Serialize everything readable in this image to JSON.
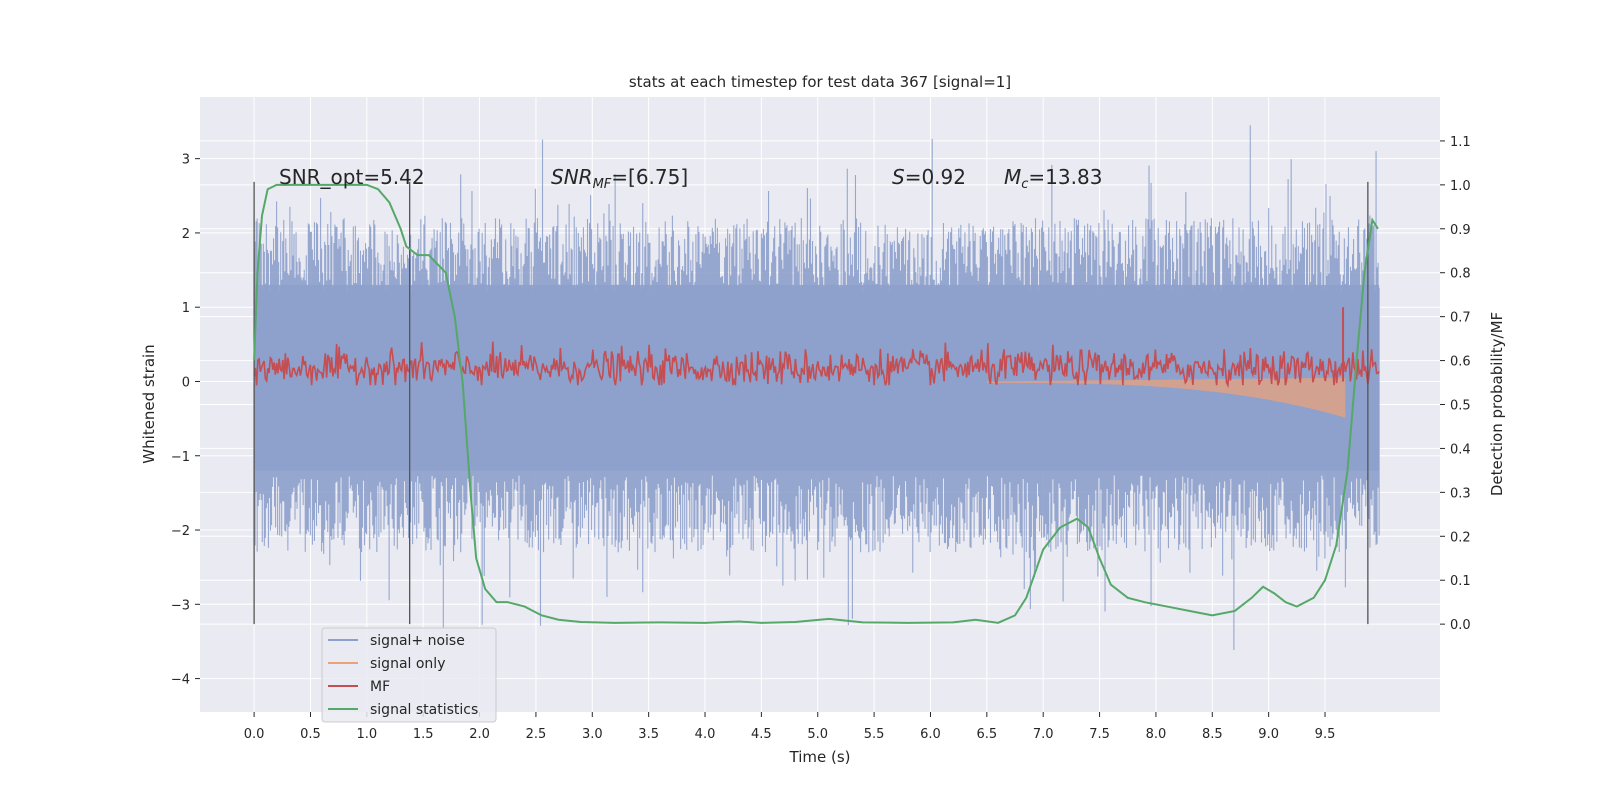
{
  "chart_data": {
    "type": "line",
    "title": "stats at each timestep for test data 367 [signal=1]",
    "xlabel": "Time (s)",
    "ylabel": "Whitened strain",
    "y2label": "Detection probability/MF",
    "xlim": [
      -0.48,
      10.52
    ],
    "ylim": [
      -4.45,
      3.83
    ],
    "y2lim": [
      -0.2,
      1.2
    ],
    "xticks": [
      0.0,
      0.5,
      1.0,
      1.5,
      2.0,
      2.5,
      3.0,
      3.5,
      4.0,
      4.5,
      5.0,
      5.5,
      6.0,
      6.5,
      7.0,
      7.5,
      8.0,
      8.5,
      9.0,
      9.5
    ],
    "xtick_labels": [
      "0.0",
      "0.5",
      "1.0",
      "1.5",
      "2.0",
      "2.5",
      "3.0",
      "3.5",
      "4.0",
      "4.5",
      "5.0",
      "5.5",
      "6.0",
      "6.5",
      "7.0",
      "7.5",
      "8.0",
      "8.5",
      "9.0",
      "9.5"
    ],
    "yticks": [
      3,
      2,
      1,
      0,
      -1,
      -2,
      -3,
      -4
    ],
    "ytick_labels": [
      "3",
      "2",
      "1",
      "0",
      "−1",
      "−2",
      "−3",
      "−4"
    ],
    "y2ticks": [
      1.1,
      1.0,
      0.9,
      0.8,
      0.7,
      0.6,
      0.5,
      0.4,
      0.3,
      0.2,
      0.1,
      0.0
    ],
    "y2tick_labels": [
      "1.1",
      "1.0",
      "0.9",
      "0.8",
      "0.7",
      "0.6",
      "0.5",
      "0.4",
      "0.3",
      "0.2",
      "0.1",
      "0.0"
    ],
    "grid": true,
    "legend_position": "lower-left",
    "annotations": {
      "snr_opt": "SNR_opt=5.42",
      "snr_mf_base": "SNR",
      "snr_mf_sub": "MF",
      "snr_mf_rest": "=[6.75]",
      "s_base": "S",
      "s_rest": "=0.92",
      "mc_base": "M",
      "mc_sub": "c",
      "mc_rest": "=13.83"
    },
    "vlines": [
      0.0,
      1.38,
      9.88
    ],
    "series": [
      {
        "name": "signal+ noise",
        "color": "#8da0cb",
        "envelope_hi": 2.2,
        "envelope_lo": -2.3,
        "t_end": 9.98
      },
      {
        "name": "signal only",
        "color": "#e9a27c",
        "t_start": 6.5,
        "t_end": 9.68,
        "peak": -0.8
      },
      {
        "name": "MF",
        "color": "#c44e52",
        "baseline": 0.18,
        "spike_t": 9.66,
        "spike_y": 1.0
      },
      {
        "name": "signal statistics",
        "color": "#55a868",
        "x": [
          0.0,
          0.03,
          0.07,
          0.12,
          0.2,
          0.3,
          0.5,
          0.8,
          1.0,
          1.1,
          1.2,
          1.3,
          1.35,
          1.45,
          1.55,
          1.7,
          1.78,
          1.85,
          1.92,
          1.97,
          2.05,
          2.15,
          2.25,
          2.4,
          2.55,
          2.7,
          2.9,
          3.2,
          3.6,
          4.0,
          4.3,
          4.5,
          4.8,
          5.1,
          5.4,
          5.8,
          6.2,
          6.4,
          6.6,
          6.75,
          6.85,
          7.0,
          7.15,
          7.3,
          7.4,
          7.5,
          7.6,
          7.75,
          7.9,
          8.1,
          8.3,
          8.5,
          8.7,
          8.85,
          8.95,
          9.05,
          9.15,
          9.25,
          9.4,
          9.5,
          9.6,
          9.7,
          9.78,
          9.85,
          9.92,
          9.97
        ],
        "y": [
          0.6,
          0.8,
          0.93,
          0.99,
          1.0,
          1.0,
          1.0,
          1.0,
          1.0,
          0.99,
          0.96,
          0.9,
          0.86,
          0.84,
          0.84,
          0.8,
          0.7,
          0.55,
          0.3,
          0.15,
          0.08,
          0.05,
          0.05,
          0.04,
          0.02,
          0.01,
          0.005,
          0.003,
          0.004,
          0.003,
          0.006,
          0.003,
          0.005,
          0.012,
          0.004,
          0.003,
          0.004,
          0.01,
          0.003,
          0.02,
          0.06,
          0.17,
          0.22,
          0.24,
          0.22,
          0.15,
          0.09,
          0.06,
          0.05,
          0.04,
          0.03,
          0.02,
          0.03,
          0.06,
          0.085,
          0.07,
          0.05,
          0.04,
          0.06,
          0.1,
          0.18,
          0.35,
          0.6,
          0.8,
          0.92,
          0.9
        ]
      }
    ]
  }
}
